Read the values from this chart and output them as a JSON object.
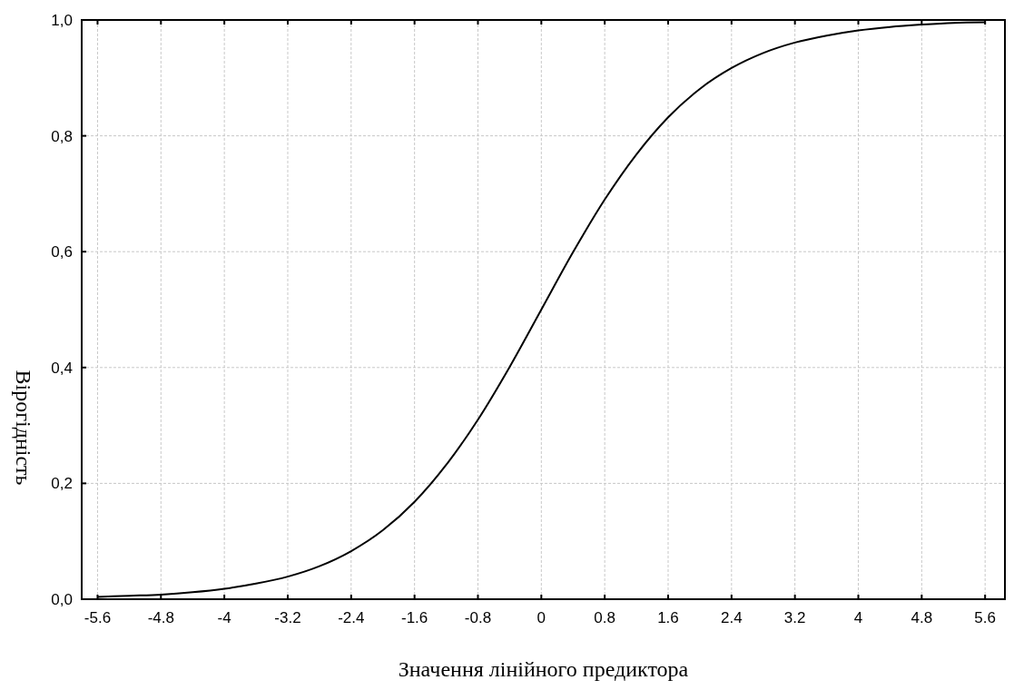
{
  "chart_data": {
    "type": "line",
    "xlabel": "Значення лінійного предиктора",
    "ylabel": "Вірогідність",
    "x": [
      -5.6,
      -5.2,
      -4.8,
      -4.4,
      -4.0,
      -3.6,
      -3.2,
      -2.8,
      -2.4,
      -2.0,
      -1.6,
      -1.2,
      -0.8,
      -0.4,
      0,
      0.4,
      0.8,
      1.2,
      1.6,
      2.0,
      2.4,
      2.8,
      3.2,
      3.6,
      4.0,
      4.4,
      4.8,
      5.2,
      5.6
    ],
    "series": [
      {
        "color": "#000000",
        "values": [
          0.004,
          0.006,
          0.008,
          0.012,
          0.018,
          0.027,
          0.039,
          0.057,
          0.083,
          0.119,
          0.168,
          0.232,
          0.31,
          0.401,
          0.5,
          0.599,
          0.69,
          0.768,
          0.832,
          0.881,
          0.917,
          0.943,
          0.961,
          0.973,
          0.982,
          0.988,
          0.992,
          0.995,
          0.996
        ]
      }
    ],
    "xlim": [
      -5.8,
      5.85
    ],
    "xticks": [
      -5.6,
      -4.8,
      -4,
      -3.2,
      -2.4,
      -1.6,
      -0.8,
      0,
      0.8,
      1.6,
      2.4,
      3.2,
      4,
      4.8,
      5.6
    ],
    "ylim": [
      0,
      1
    ],
    "yticks": [
      {
        "value": 0,
        "label": "0,0"
      },
      {
        "value": 0.2,
        "label": "0,2"
      },
      {
        "value": 0.4,
        "label": "0,4"
      },
      {
        "value": 0.6,
        "label": "0,6"
      },
      {
        "value": 0.8,
        "label": "0,8"
      },
      {
        "value": 1,
        "label": "1,0"
      }
    ],
    "grid": true,
    "marker": "none",
    "line_style": "solid"
  }
}
